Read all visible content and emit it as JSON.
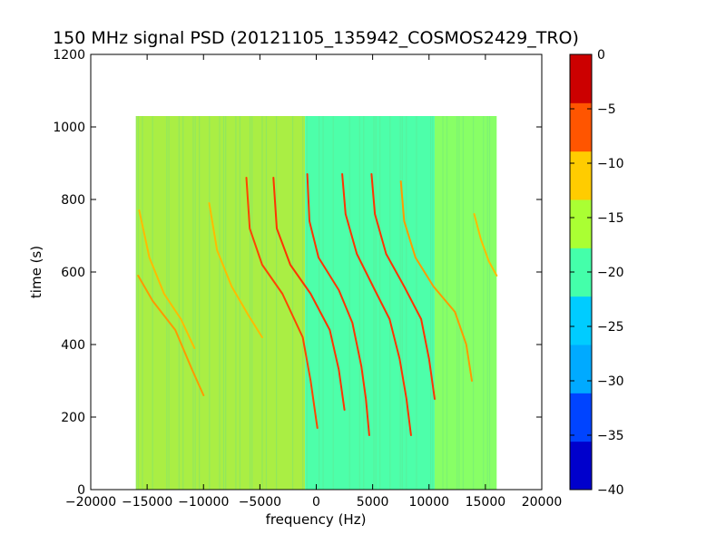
{
  "chart_data": {
    "type": "heatmap",
    "title": "150 MHz signal PSD (20121105_135942_COSMOS2429_TRO)",
    "xlabel": "frequency (Hz)",
    "ylabel": "time (s)",
    "xlim": [
      -20000,
      20000
    ],
    "ylim": [
      0,
      1200
    ],
    "x_ticks": [
      -20000,
      -15000,
      -10000,
      -5000,
      0,
      5000,
      10000,
      15000,
      20000
    ],
    "x_tick_labels": [
      "−20000",
      "−15000",
      "−10000",
      "−5000",
      "0",
      "5000",
      "10000",
      "15000",
      "20000"
    ],
    "y_ticks": [
      0,
      200,
      400,
      600,
      800,
      1000,
      1200
    ],
    "y_tick_labels": [
      "0",
      "200",
      "400",
      "600",
      "800",
      "1000",
      "1200"
    ],
    "data_extent": {
      "freq": [
        -16000,
        16000
      ],
      "time": [
        0,
        1030
      ]
    },
    "grid": false,
    "colorbar": {
      "levels": [
        -40,
        -35,
        -30,
        -25,
        -20,
        -15,
        -10,
        -5,
        0
      ],
      "tick_labels": [
        "−40",
        "−35",
        "−30",
        "−25",
        "−20",
        "−15",
        "−10",
        "−5",
        "0"
      ],
      "colors": [
        "#0000cc",
        "#0044ff",
        "#00aaff",
        "#00ccff",
        "#44ffaa",
        "#aaff33",
        "#ffcc00",
        "#ff5500",
        "#cc0000"
      ]
    },
    "background_regions": [
      {
        "freq_range": [
          -16000,
          -1000
        ],
        "level": -17.5,
        "color": "#aaee44"
      },
      {
        "freq_range": [
          -1000,
          10500
        ],
        "level": -22.5,
        "color": "#4dffaa"
      },
      {
        "freq_range": [
          10500,
          16000
        ],
        "level": -20,
        "color": "#88ff66"
      }
    ],
    "traces": [
      {
        "points": [
          [
            -15800,
            590
          ],
          [
            -14500,
            520
          ],
          [
            -12500,
            440
          ],
          [
            -11000,
            330
          ],
          [
            -10000,
            260
          ]
        ],
        "color": "#ff9900"
      },
      {
        "points": [
          [
            -15700,
            770
          ],
          [
            -14800,
            640
          ],
          [
            -13500,
            540
          ],
          [
            -12000,
            470
          ],
          [
            -10800,
            390
          ]
        ],
        "color": "#ffbb00"
      },
      {
        "points": [
          [
            -9500,
            790
          ],
          [
            -8800,
            660
          ],
          [
            -7500,
            560
          ],
          [
            -6000,
            480
          ],
          [
            -4800,
            420
          ]
        ],
        "color": "#ffbb00"
      },
      {
        "points": [
          [
            -6200,
            860
          ],
          [
            -5900,
            720
          ],
          [
            -4800,
            620
          ],
          [
            -3000,
            540
          ],
          [
            -1200,
            420
          ],
          [
            -500,
            300
          ],
          [
            100,
            170
          ]
        ],
        "color": "#ff4400"
      },
      {
        "points": [
          [
            -3800,
            860
          ],
          [
            -3500,
            720
          ],
          [
            -2300,
            620
          ],
          [
            -500,
            540
          ],
          [
            1200,
            440
          ],
          [
            2000,
            330
          ],
          [
            2500,
            220
          ]
        ],
        "color": "#ff3300"
      },
      {
        "points": [
          [
            -800,
            870
          ],
          [
            -600,
            740
          ],
          [
            200,
            640
          ],
          [
            2000,
            550
          ],
          [
            3200,
            460
          ],
          [
            4000,
            340
          ],
          [
            4400,
            250
          ],
          [
            4700,
            150
          ]
        ],
        "color": "#ff3300"
      },
      {
        "points": [
          [
            2300,
            870
          ],
          [
            2600,
            760
          ],
          [
            3600,
            650
          ],
          [
            5200,
            550
          ],
          [
            6500,
            470
          ],
          [
            7400,
            360
          ],
          [
            8000,
            250
          ],
          [
            8400,
            150
          ]
        ],
        "color": "#ff3300"
      },
      {
        "points": [
          [
            4900,
            870
          ],
          [
            5200,
            760
          ],
          [
            6200,
            650
          ],
          [
            7800,
            560
          ],
          [
            9300,
            470
          ],
          [
            10000,
            360
          ],
          [
            10500,
            250
          ]
        ],
        "color": "#ff3300"
      },
      {
        "points": [
          [
            7500,
            850
          ],
          [
            7800,
            740
          ],
          [
            8800,
            640
          ],
          [
            10400,
            560
          ],
          [
            12300,
            490
          ],
          [
            13300,
            400
          ],
          [
            13800,
            300
          ]
        ],
        "color": "#ff9900"
      },
      {
        "points": [
          [
            14000,
            760
          ],
          [
            14600,
            690
          ],
          [
            15300,
            630
          ],
          [
            16000,
            590
          ]
        ],
        "color": "#ffbb00"
      }
    ]
  }
}
